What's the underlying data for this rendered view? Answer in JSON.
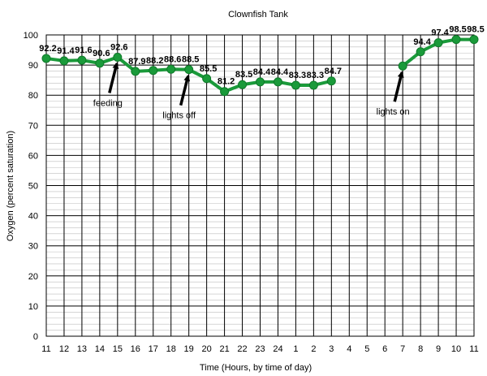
{
  "chart_data": {
    "type": "line",
    "title": "Clownfish Tank",
    "xlabel": "Time (Hours, by time of day)",
    "ylabel": "Oxygen (percent saturation)",
    "ylim": [
      0,
      100
    ],
    "yticks": [
      0,
      10,
      20,
      30,
      40,
      50,
      60,
      70,
      80,
      90,
      100
    ],
    "grid": true,
    "series_color": "#1a9a3a",
    "x": [
      "11",
      "12",
      "13",
      "14",
      "15",
      "16",
      "17",
      "18",
      "19",
      "20",
      "21",
      "22",
      "23",
      "24",
      "1",
      "2",
      "3",
      "4",
      "5",
      "6",
      "7",
      "8",
      "9",
      "10",
      "11"
    ],
    "values": [
      92.2,
      91.4,
      91.6,
      90.6,
      92.6,
      87.9,
      88.2,
      88.6,
      88.5,
      85.5,
      81.2,
      83.5,
      84.4,
      84.4,
      83.3,
      83.3,
      84.7,
      null,
      null,
      null,
      89.7,
      94.4,
      97.4,
      98.5,
      98.5
    ],
    "data_labels": [
      "92.2",
      "91.4",
      "91.6",
      "90.6",
      "92.6",
      "87.9",
      "88.2",
      "88.6",
      "88.5",
      "85.5",
      "81.2",
      "83.5",
      "84.4",
      "84.4",
      "83.3",
      "83.3",
      "84.7",
      "",
      "",
      "",
      "",
      "94.4",
      "97.4",
      "98.5",
      "98.5"
    ],
    "annotations": [
      {
        "text": "feeding",
        "x_index": 4,
        "y": 92.6
      },
      {
        "text": "lights off",
        "x_index": 8,
        "y": 88.5
      },
      {
        "text": "lights on",
        "x_index": 20,
        "y": 89.7
      }
    ]
  }
}
